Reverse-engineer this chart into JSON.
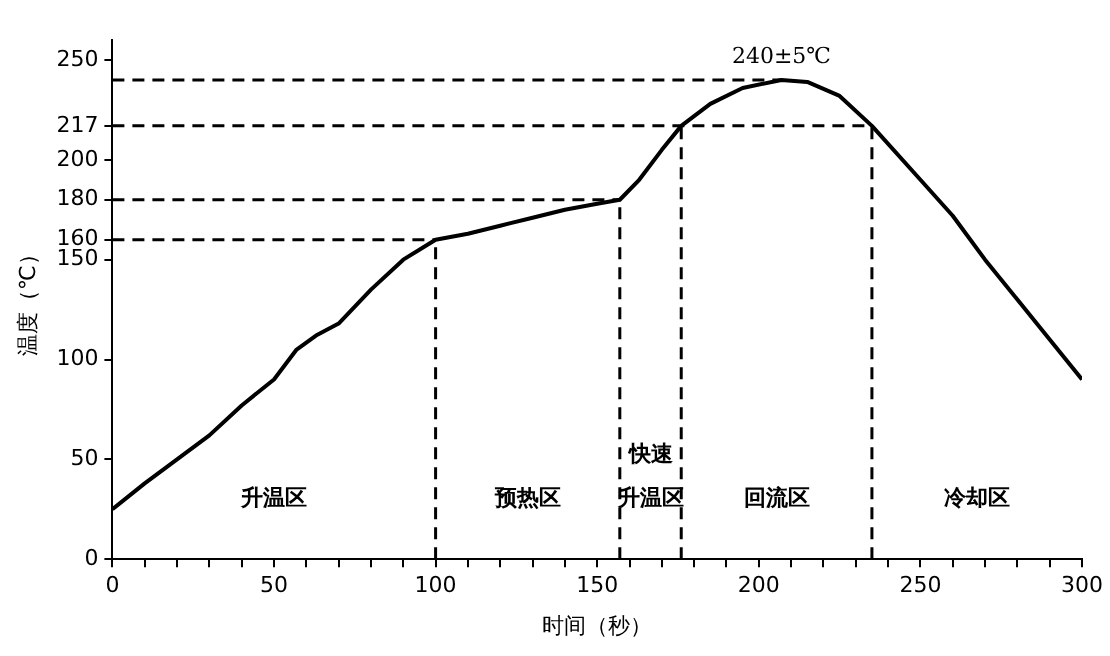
{
  "chart_data": {
    "type": "line",
    "xlabel": "时间（秒）",
    "ylabel": "温度（℃）",
    "series": [
      {
        "color": "#000000",
        "x": [
          0,
          10,
          20,
          30,
          40,
          50,
          57,
          63,
          70,
          80,
          90,
          100,
          110,
          120,
          130,
          140,
          150,
          157,
          163,
          170,
          176,
          185,
          195,
          207,
          215,
          225,
          235,
          250,
          260,
          270,
          280,
          290,
          300
        ],
        "values": [
          25,
          38,
          50,
          62,
          77,
          90,
          105,
          112,
          118,
          135,
          150,
          160,
          163,
          167,
          171,
          175,
          178,
          180,
          190,
          205,
          217,
          228,
          236,
          240,
          239,
          232,
          217,
          190,
          172,
          150,
          130,
          110,
          90
        ]
      }
    ],
    "xlim": [
      0,
      300
    ],
    "ylim": [
      0,
      260
    ],
    "xticks": [
      0,
      {
        "value": 10,
        "label": null
      },
      {
        "value": 20,
        "label": null
      },
      {
        "value": 30,
        "label": null
      },
      {
        "value": 40,
        "label": null
      },
      50,
      {
        "value": 60,
        "label": null
      },
      {
        "value": 70,
        "label": null
      },
      {
        "value": 80,
        "label": null
      },
      {
        "value": 90,
        "label": null
      },
      100,
      {
        "value": 110,
        "label": null
      },
      {
        "value": 120,
        "label": null
      },
      {
        "value": 130,
        "label": null
      },
      {
        "value": 140,
        "label": null
      },
      150,
      {
        "value": 160,
        "label": null
      },
      {
        "value": 170,
        "label": null
      },
      {
        "value": 180,
        "label": null
      },
      {
        "value": 190,
        "label": null
      },
      200,
      {
        "value": 210,
        "label": null
      },
      {
        "value": 220,
        "label": null
      },
      {
        "value": 230,
        "label": null
      },
      {
        "value": 240,
        "label": null
      },
      250,
      {
        "value": 260,
        "label": null
      },
      {
        "value": 270,
        "label": null
      },
      {
        "value": 280,
        "label": null
      },
      {
        "value": 290,
        "label": null
      },
      300
    ],
    "yticks": [
      0,
      50,
      100,
      150,
      160,
      180,
      200,
      217,
      250
    ],
    "marker": "none",
    "line_style": "solid",
    "legend": false,
    "grid": false,
    "ref_lines": [
      {
        "axis": "y",
        "value": 160,
        "line_style": "dashed"
      },
      {
        "axis": "y",
        "value": 180,
        "line_style": "dashed"
      },
      {
        "axis": "y",
        "value": 217,
        "line_style": "dashed"
      },
      {
        "axis": "y",
        "value": 240,
        "line_style": "dashed"
      },
      {
        "axis": "x",
        "value": 100,
        "line_style": "dashed"
      },
      {
        "axis": "x",
        "value": 157,
        "line_style": "dashed"
      },
      {
        "axis": "x",
        "value": 176,
        "line_style": "dashed"
      },
      {
        "axis": "x",
        "value": 235,
        "line_style": "dashed"
      }
    ],
    "annotations": [
      {
        "text": "240±5℃",
        "x": 207,
        "y": 240
      },
      "升温区",
      "预热区",
      "快速升温区",
      "回流区",
      "冷却区"
    ]
  }
}
